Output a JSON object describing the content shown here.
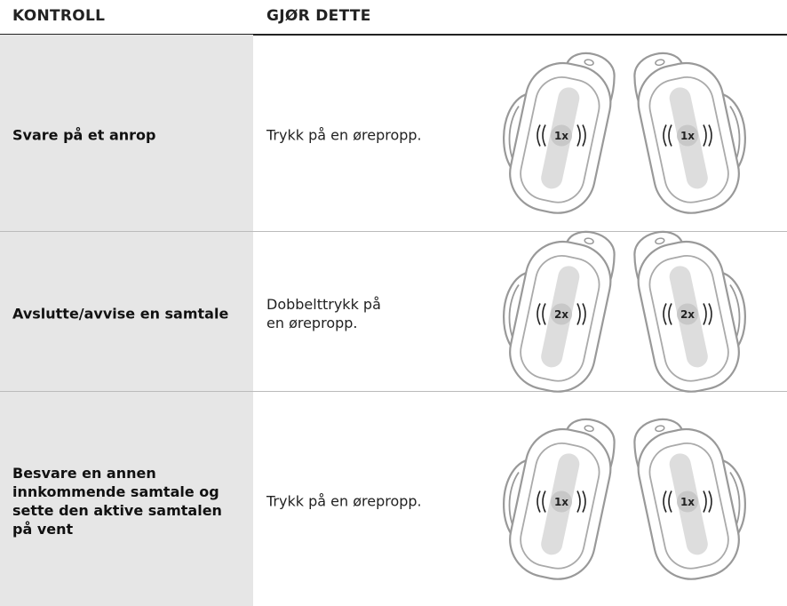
{
  "table": {
    "header": [
      "KONTROLL",
      "GJØR DETTE"
    ],
    "rows": [
      {
        "control": "Svare på et anrop",
        "action": "Trykk på en ørepropp.",
        "taps": [
          "1x",
          "1x"
        ]
      },
      {
        "control": "Avslutte/avvise en samtale",
        "action": "Dobbelttrykk på\nen ørepropp.",
        "taps": [
          "2x",
          "2x"
        ]
      },
      {
        "control": "Besvare en annen\ninnkommende samtale og\nsette den aktive samtalen\npå vent",
        "action": "Trykk på en ørepropp.",
        "taps": [
          "1x",
          "1x"
        ]
      }
    ]
  }
}
